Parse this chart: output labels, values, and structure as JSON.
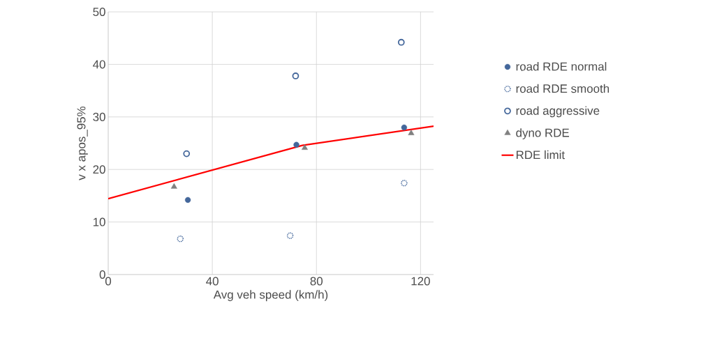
{
  "chart_data": {
    "type": "scatter",
    "xlabel": "Avg veh speed (km/h)",
    "ylabel": "v x apos_95%",
    "xlim": [
      0,
      125
    ],
    "xticks": [
      0,
      40,
      80,
      120
    ],
    "ylim": [
      0,
      50
    ],
    "yticks": [
      0,
      10,
      20,
      30,
      40,
      50
    ],
    "grid": true,
    "legend": "right",
    "marker": "circle",
    "series": [
      {
        "name": "road RDE normal",
        "color": "#44679b",
        "x": [
          30.6,
          72.3,
          113.7
        ],
        "values": [
          14.2,
          24.7,
          28.0
        ]
      },
      {
        "name": "road RDE smooth",
        "color": "#44679b",
        "x": [
          27.7,
          69.9,
          113.7
        ],
        "values": [
          6.8,
          7.4,
          17.4
        ]
      },
      {
        "name": "road aggressive",
        "color": "#44679b",
        "x": [
          30.1,
          72.0,
          112.6
        ],
        "values": [
          23.0,
          37.8,
          44.2
        ]
      },
      {
        "name": "dyno RDE",
        "color": "#808080",
        "marker": "triangle",
        "x": [
          25.3,
          75.5,
          116.4
        ],
        "values": [
          16.7,
          24.1,
          26.9
        ]
      },
      {
        "name": "RDE limit",
        "type": "line",
        "marker": "none",
        "color": "#ff0000",
        "x": [
          0,
          74.6,
          125
        ],
        "values": [
          14.44,
          24.59,
          28.24
        ]
      }
    ]
  }
}
